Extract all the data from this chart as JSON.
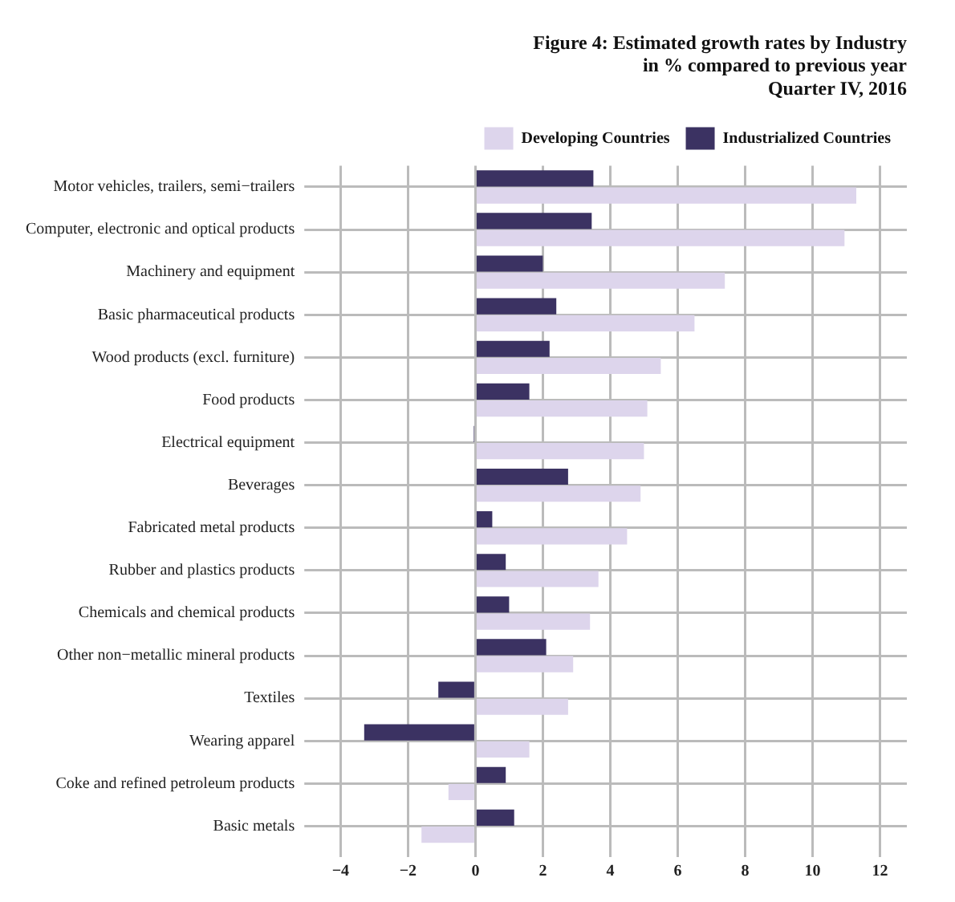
{
  "chart_data": {
    "type": "bar",
    "orientation": "horizontal",
    "title": [
      "Figure 4: Estimated growth rates by Industry",
      "in % compared to previous year",
      "Quarter IV, 2016"
    ],
    "categories": [
      "Motor vehicles, trailers, semi−trailers",
      "Computer, electronic and optical products",
      "Machinery and equipment",
      "Basic pharmaceutical products",
      "Wood products (excl. furniture)",
      "Food products",
      "Electrical equipment",
      "Beverages",
      "Fabricated metal products",
      "Rubber and plastics products",
      "Chemicals and chemical products",
      "Other non−metallic mineral products",
      "Textiles",
      "Wearing apparel",
      "Coke and refined petroleum products",
      "Basic metals"
    ],
    "series": [
      {
        "name": "Industrialized Countries",
        "color": "#3b3262",
        "values": [
          3.5,
          3.45,
          2.0,
          2.4,
          2.2,
          1.6,
          -0.05,
          2.75,
          0.5,
          0.9,
          1.0,
          2.1,
          -1.1,
          -3.3,
          0.9,
          1.15
        ]
      },
      {
        "name": "Developing Countries",
        "color": "#ddd5ec",
        "values": [
          11.3,
          10.95,
          7.4,
          6.5,
          5.5,
          5.1,
          5.0,
          4.9,
          4.5,
          3.65,
          3.4,
          2.9,
          2.75,
          1.6,
          -0.8,
          -1.6
        ]
      }
    ],
    "xlim": [
      -4.6,
      12.8
    ],
    "xticks": [
      {
        "value": -4,
        "label": "−4"
      },
      {
        "value": -2,
        "label": "−2"
      },
      0,
      2,
      4,
      6,
      8,
      10,
      12
    ],
    "grid": true,
    "legend": "top"
  }
}
